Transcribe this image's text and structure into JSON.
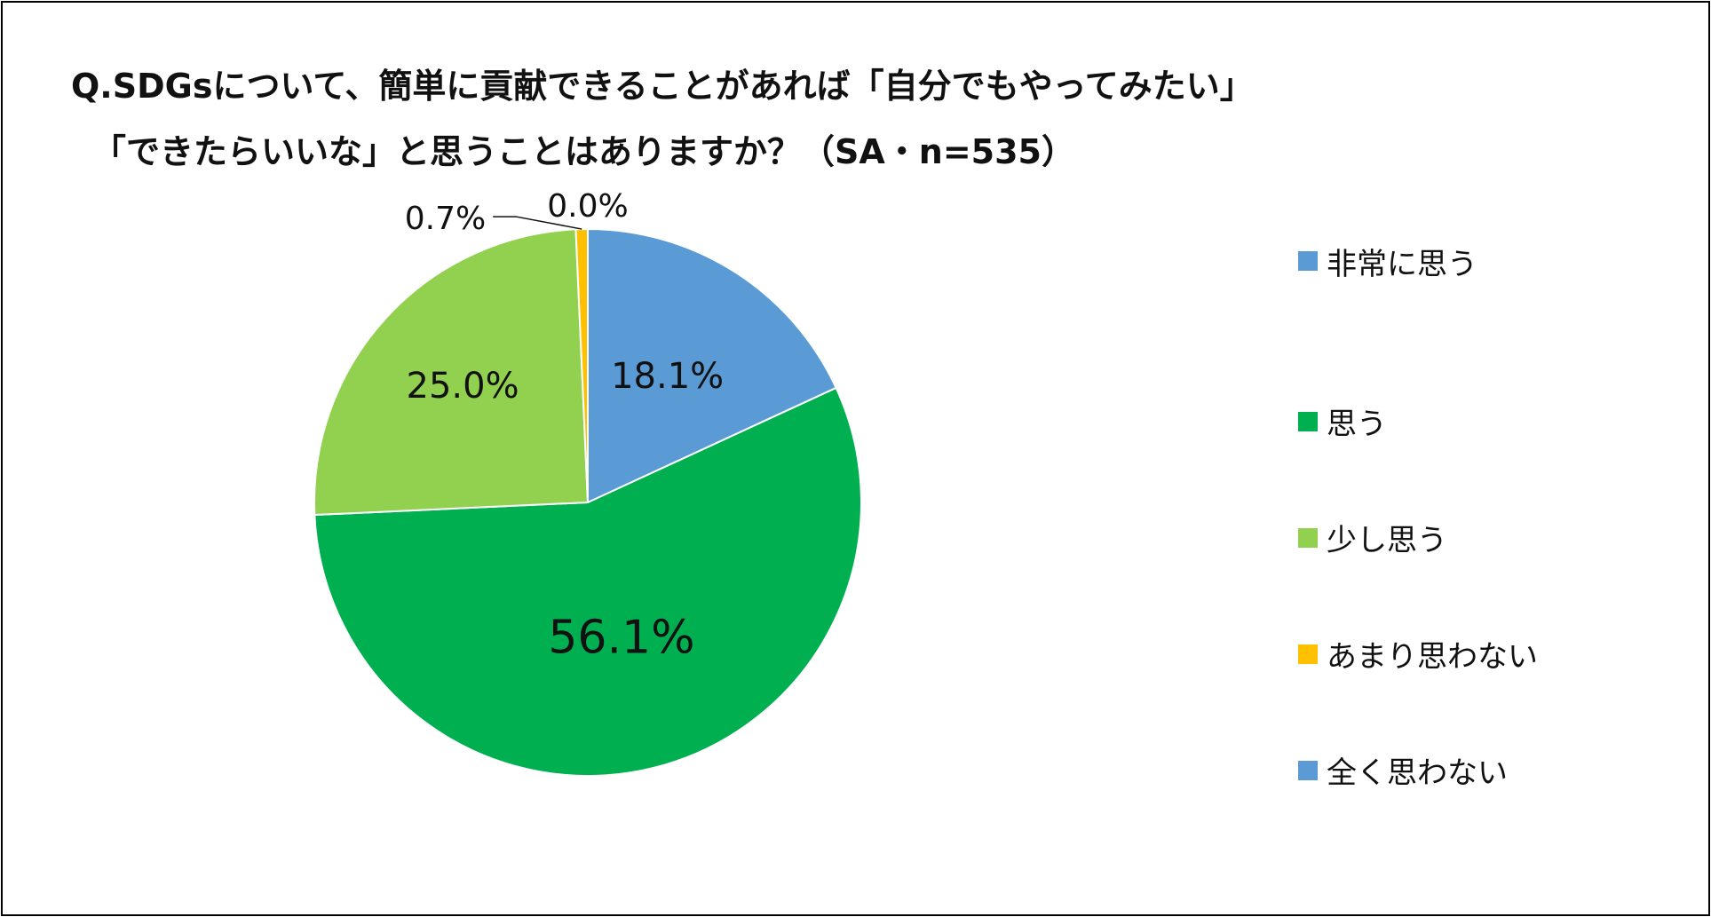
{
  "title_line1": "Q.SDGsについて、簡単に貢献できることがあれば「自分でもやってみたい」",
  "title_line2": "「できたらいいな」と思うことはありますか？（SA・n=535）",
  "chart_data": {
    "type": "pie",
    "title": "Q.SDGsについて、簡単に貢献できることがあれば「自分でもやってみたい」「できたらいいな」と思うことはありますか？（SA・n=535）",
    "categories": [
      "非常に思う",
      "思う",
      "少し思う",
      "あまり思わない",
      "全く思わない"
    ],
    "values": [
      18.1,
      56.1,
      25.0,
      0.7,
      0.0
    ],
    "labels": [
      "18.1%",
      "56.1%",
      "25.0%",
      "0.7%",
      "0.0%"
    ],
    "colors": [
      "#5b9bd5",
      "#00b050",
      "#92d050",
      "#ffc000",
      "#5b9bd5"
    ],
    "legend": "right"
  }
}
